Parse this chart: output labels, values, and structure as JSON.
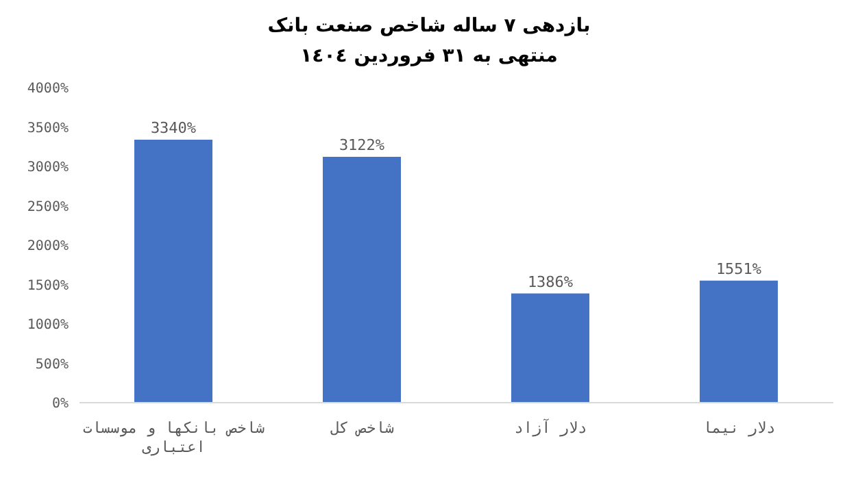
{
  "chart_data": {
    "type": "bar",
    "title": "بازدهی ٧ ساله شاخص صنعت بانک",
    "subtitle": "منتهی به ٣١ فروردین ١٤٠٤",
    "categories": [
      "شاخص بانکها و موسسات اعتباری",
      "شاخص کل",
      "دلار آزاد",
      "دلار نیما"
    ],
    "values": [
      3340,
      3122,
      1386,
      1551
    ],
    "color": "#4472c4",
    "value_labels": [
      "3340%",
      "3122%",
      "1386%",
      "1551%"
    ],
    "ylim": [
      0,
      4000
    ],
    "yticks": [
      {
        "value": 0,
        "label": "0%"
      },
      {
        "value": 500,
        "label": "500%"
      },
      {
        "value": 1000,
        "label": "1000%"
      },
      {
        "value": 1500,
        "label": "1500%"
      },
      {
        "value": 2000,
        "label": "2000%"
      },
      {
        "value": 2500,
        "label": "2500%"
      },
      {
        "value": 3000,
        "label": "3000%"
      },
      {
        "value": 3500,
        "label": "3500%"
      },
      {
        "value": 4000,
        "label": "4000%"
      }
    ],
    "grid": false,
    "legend": false
  }
}
